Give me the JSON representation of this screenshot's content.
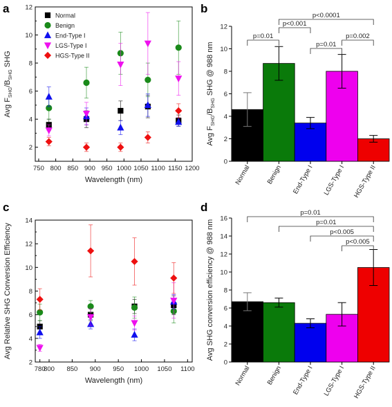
{
  "chart_data": [
    {
      "panel": "a",
      "type": "scatter",
      "xlabel": "Wavelength (nm)",
      "ylabel": "Avg F_SHG/B_SHG SHG",
      "ylabel_parts": {
        "pre": "Avg F",
        "sub1": "SHG",
        "mid": "/B",
        "sub2": "SHG",
        "post": " SHG"
      },
      "xlim": [
        740,
        1200
      ],
      "ylim": [
        1,
        12
      ],
      "xticks": [
        750,
        800,
        850,
        900,
        950,
        1000,
        1050,
        1100,
        1150,
        1200
      ],
      "yticks": [
        2,
        4,
        6,
        8,
        10,
        12
      ],
      "legend_position": "top-left",
      "series": [
        {
          "name": "Normal",
          "color": "#000000",
          "marker": "square",
          "points": [
            {
              "x": 780,
              "y": 3.6,
              "e": 0.4
            },
            {
              "x": 890,
              "y": 4.0,
              "e": 0.6
            },
            {
              "x": 990,
              "y": 4.6,
              "e": 0.7
            },
            {
              "x": 1070,
              "y": 4.9,
              "e": 0.8
            },
            {
              "x": 1160,
              "y": 3.9,
              "e": 0.4
            }
          ]
        },
        {
          "name": "Benign",
          "color": "#1a8a1a",
          "marker": "circle",
          "points": [
            {
              "x": 780,
              "y": 4.8,
              "e": 0.8
            },
            {
              "x": 890,
              "y": 6.6,
              "e": 1.1
            },
            {
              "x": 990,
              "y": 8.7,
              "e": 1.5
            },
            {
              "x": 1070,
              "y": 6.8,
              "e": 1.2
            },
            {
              "x": 1160,
              "y": 9.1,
              "e": 1.9
            }
          ]
        },
        {
          "name": "End-Type I",
          "color": "#1010ee",
          "marker": "triangle-up",
          "points": [
            {
              "x": 780,
              "y": 5.6,
              "e": 0.7
            },
            {
              "x": 890,
              "y": 4.2,
              "e": 0.6
            },
            {
              "x": 990,
              "y": 3.4,
              "e": 0.5
            },
            {
              "x": 1070,
              "y": 5.0,
              "e": 0.8
            },
            {
              "x": 1160,
              "y": 3.8,
              "e": 0.3
            }
          ]
        },
        {
          "name": "LGS-Type I",
          "color": "#ee10ee",
          "marker": "triangle-down",
          "points": [
            {
              "x": 780,
              "y": 3.2,
              "e": 0.4
            },
            {
              "x": 890,
              "y": 4.4,
              "e": 0.8
            },
            {
              "x": 990,
              "y": 7.9,
              "e": 1.5
            },
            {
              "x": 1070,
              "y": 9.4,
              "e": 2.2
            },
            {
              "x": 1160,
              "y": 6.9,
              "e": 1.2
            }
          ]
        },
        {
          "name": "HGS-Type II",
          "color": "#ee1010",
          "marker": "diamond",
          "points": [
            {
              "x": 780,
              "y": 2.4,
              "e": 0.3
            },
            {
              "x": 890,
              "y": 2.0,
              "e": 0.3
            },
            {
              "x": 990,
              "y": 2.0,
              "e": 0.3
            },
            {
              "x": 1070,
              "y": 2.7,
              "e": 0.4
            },
            {
              "x": 1160,
              "y": 4.6,
              "e": 0.5
            }
          ]
        }
      ]
    },
    {
      "panel": "b",
      "type": "bar",
      "ylabel": "Avg F_SHG/B_SHG SHG @ 988 nm",
      "ylabel_parts": {
        "pre": "Avg F",
        "sub1": "SHG",
        "mid": "/B",
        "sub2": "SHG",
        "post": " SHG @ 988 nm"
      },
      "ylim": [
        0,
        12
      ],
      "yticks": [
        0,
        2,
        4,
        6,
        8,
        10,
        12
      ],
      "categories": [
        "Normal",
        "Benign",
        "End-Type I",
        "LGS-Type I",
        "HGS-Type II"
      ],
      "values": [
        4.6,
        8.7,
        3.4,
        8.0,
        2.0
      ],
      "errors": [
        1.5,
        1.5,
        0.5,
        1.5,
        0.3
      ],
      "colors": [
        "#000000",
        "#0a7a0a",
        "#0000ee",
        "#ee00ee",
        "#ee0000"
      ],
      "brackets": [
        {
          "from": 0,
          "to": 1,
          "label": "p=0.01",
          "level": 0
        },
        {
          "from": 1,
          "to": 2,
          "label": "p<0.001",
          "level": 1
        },
        {
          "from": 2,
          "to": 3,
          "label": "p=0.01",
          "level": 0
        },
        {
          "from": 3,
          "to": 4,
          "label": "p=0.002",
          "level": 0
        },
        {
          "from": 1,
          "to": 4,
          "label": "p<0.0001",
          "level": 2
        }
      ]
    },
    {
      "panel": "c",
      "type": "scatter",
      "xlabel": "Wavelength (nm)",
      "ylabel": "Avg Relative SHG Conversion Efficiency",
      "xlim": [
        770,
        1110
      ],
      "ylim": [
        2,
        14
      ],
      "xticks": [
        780,
        800,
        850,
        900,
        950,
        1000,
        1050,
        1100
      ],
      "yticks": [
        2,
        4,
        6,
        8,
        10,
        12,
        14
      ],
      "series": [
        {
          "name": "Normal",
          "color": "#000000",
          "marker": "square",
          "points": [
            {
              "x": 780,
              "y": 5.0,
              "e": 0.5
            },
            {
              "x": 890,
              "y": 6.0,
              "e": 0.5
            },
            {
              "x": 985,
              "y": 6.7,
              "e": 0.6
            },
            {
              "x": 1070,
              "y": 6.8,
              "e": 0.8
            }
          ]
        },
        {
          "name": "Benign",
          "color": "#1a8a1a",
          "marker": "circle",
          "points": [
            {
              "x": 780,
              "y": 6.2,
              "e": 0.7
            },
            {
              "x": 890,
              "y": 6.7,
              "e": 0.5
            },
            {
              "x": 985,
              "y": 6.6,
              "e": 0.9
            },
            {
              "x": 1070,
              "y": 6.3,
              "e": 1.0
            }
          ]
        },
        {
          "name": "End-Type I",
          "color": "#1010ee",
          "marker": "triangle-up",
          "points": [
            {
              "x": 780,
              "y": 4.5,
              "e": 0.5
            },
            {
              "x": 890,
              "y": 5.2,
              "e": 0.4
            },
            {
              "x": 985,
              "y": 4.3,
              "e": 0.5
            },
            {
              "x": 1070,
              "y": 7.1,
              "e": 0.6
            }
          ]
        },
        {
          "name": "LGS-Type I",
          "color": "#ee10ee",
          "marker": "triangle-down",
          "points": [
            {
              "x": 780,
              "y": 3.2,
              "e": 0.3
            },
            {
              "x": 890,
              "y": 5.8,
              "e": 0.7
            },
            {
              "x": 985,
              "y": 5.3,
              "e": 0.6
            },
            {
              "x": 1070,
              "y": 7.2,
              "e": 1.5
            }
          ]
        },
        {
          "name": "HGS-Type II",
          "color": "#ee1010",
          "marker": "diamond",
          "points": [
            {
              "x": 780,
              "y": 7.3,
              "e": 0.9
            },
            {
              "x": 890,
              "y": 11.4,
              "e": 2.2
            },
            {
              "x": 985,
              "y": 10.5,
              "e": 2.0
            },
            {
              "x": 1070,
              "y": 9.1,
              "e": 1.3
            }
          ]
        }
      ]
    },
    {
      "panel": "d",
      "type": "bar",
      "ylabel": "Avg SHG conversion efficiency @ 988 nm",
      "ylim": [
        0,
        16
      ],
      "yticks": [
        0,
        2,
        4,
        6,
        8,
        10,
        12,
        14,
        16
      ],
      "categories": [
        "Normal",
        "Benign",
        "End-Type I",
        "LGS-Type I",
        "HGS-Type II"
      ],
      "values": [
        6.7,
        6.6,
        4.3,
        5.3,
        10.5
      ],
      "errors": [
        1.0,
        0.5,
        0.5,
        1.3,
        2.0
      ],
      "colors": [
        "#000000",
        "#0a7a0a",
        "#0000ee",
        "#ee00ee",
        "#ee0000"
      ],
      "brackets": [
        {
          "from": 0,
          "to": 4,
          "label": "p=0.01",
          "level": 3
        },
        {
          "from": 1,
          "to": 4,
          "label": "p=0.01",
          "level": 2
        },
        {
          "from": 2,
          "to": 4,
          "label": "p<0.005",
          "level": 1
        },
        {
          "from": 3,
          "to": 4,
          "label": "p<0.005",
          "level": 0
        }
      ]
    }
  ]
}
